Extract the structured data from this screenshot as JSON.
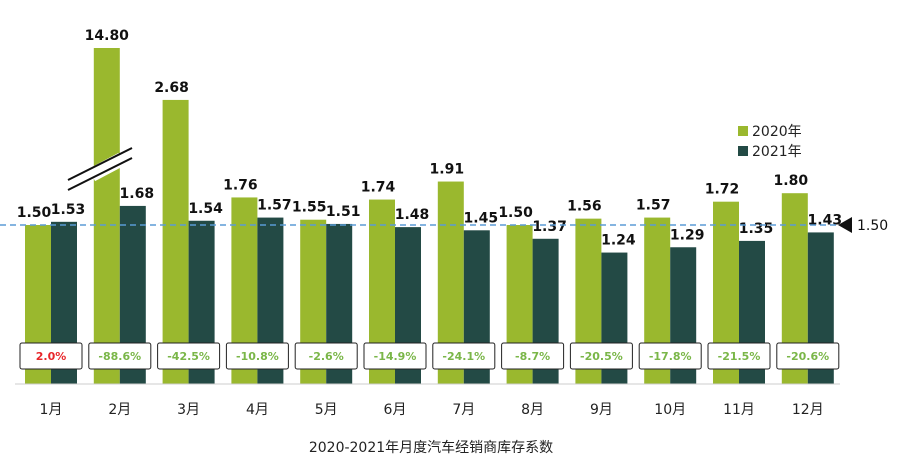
{
  "chart_data": {
    "type": "bar",
    "title": "2020-2021年月度汽车经销商库存系数",
    "categories": [
      "1月",
      "2月",
      "3月",
      "4月",
      "5月",
      "6月",
      "7月",
      "8月",
      "9月",
      "10月",
      "11月",
      "12月"
    ],
    "series": [
      {
        "name": "2020年",
        "values": [
          1.5,
          14.8,
          2.68,
          1.76,
          1.55,
          1.74,
          1.91,
          1.5,
          1.56,
          1.57,
          1.72,
          1.8
        ],
        "color": "#9ab82e"
      },
      {
        "name": "2021年",
        "values": [
          1.53,
          1.68,
          1.54,
          1.57,
          1.51,
          1.48,
          1.45,
          1.37,
          1.24,
          1.29,
          1.35,
          1.43
        ],
        "color": "#234a45"
      }
    ],
    "value_labels_2020": [
      "1.50",
      "14.80",
      "2.68",
      "1.76",
      "1.55",
      "1.74",
      "1.91",
      "1.50",
      "1.56",
      "1.57",
      "1.72",
      "1.80"
    ],
    "value_labels_2021": [
      "1.53",
      "1.68",
      "1.54",
      "1.57",
      "1.51",
      "1.48",
      "1.45",
      "1.37",
      "1.24",
      "1.29",
      "1.35",
      "1.43"
    ],
    "yoy_change": [
      "2.0%",
      "-88.6%",
      "-42.5%",
      "-10.8%",
      "-2.6%",
      "-14.9%",
      "-24.1%",
      "-8.7%",
      "-20.5%",
      "-17.8%",
      "-21.5%",
      "-20.6%"
    ],
    "yoy_colors": {
      "positive": "#e8262a",
      "negative": "#7ab648"
    },
    "reference_line": {
      "value": 1.5,
      "label": "1.50",
      "color": "#5b9bd5"
    },
    "axis_break_on": "2月",
    "legend_position": "right",
    "grid": false
  }
}
